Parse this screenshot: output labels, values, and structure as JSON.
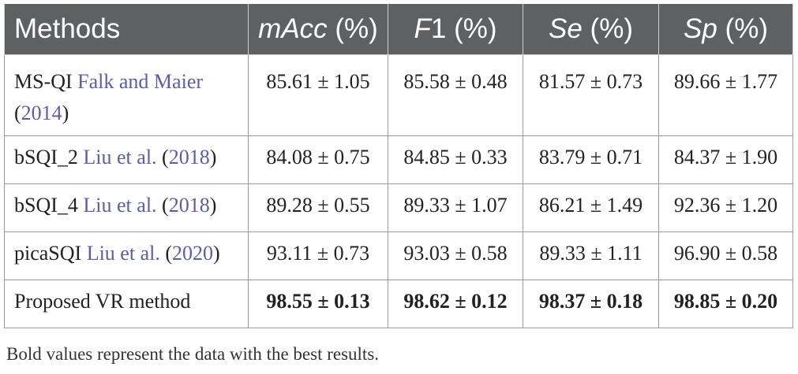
{
  "table": {
    "headers": {
      "methods": "Methods",
      "macc_it": "mAcc",
      "macc_unit": " (%)",
      "f1_it": "F",
      "f1_rest": "1 (%)",
      "se_it": "Se",
      "se_unit": " (%)",
      "sp_it": "Sp",
      "sp_unit": " (%)"
    },
    "rows": [
      {
        "method_name": "MS-QI ",
        "method_ref": "Falk and Maier",
        "method_year_open": "(",
        "method_year": "2014",
        "method_year_close": ")",
        "macc": "85.61 ± 1.05",
        "f1": "85.58 ± 0.48",
        "se": "81.57 ± 0.73",
        "sp": "89.66 ± 1.77"
      },
      {
        "method_name": "bSQI_2 ",
        "method_ref": "Liu et al.",
        "method_year_open": " (",
        "method_year": "2018",
        "method_year_close": ")",
        "macc": "84.08 ± 0.75",
        "f1": "84.85 ± 0.33",
        "se": "83.79 ± 0.71",
        "sp": "84.37 ± 1.90"
      },
      {
        "method_name": "bSQI_4 ",
        "method_ref": "Liu et al.",
        "method_year_open": " (",
        "method_year": "2018",
        "method_year_close": ")",
        "macc": "89.28 ± 0.55",
        "f1": "89.33 ± 1.07",
        "se": "86.21 ± 1.49",
        "sp": "92.36 ± 1.20"
      },
      {
        "method_name": "picaSQI ",
        "method_ref": "Liu et al.",
        "method_year_open": " (",
        "method_year": "2020",
        "method_year_close": ")",
        "macc": "93.11 ± 0.73",
        "f1": "93.03 ± 0.58",
        "se": "89.33 ± 1.11",
        "sp": "96.90 ± 0.58"
      },
      {
        "method_name": "Proposed VR method",
        "macc": "98.55 ± 0.13",
        "f1": "98.62 ± 0.12",
        "se": "98.37 ± 0.18",
        "sp": "98.85 ± 0.20"
      }
    ]
  },
  "footnote": "Bold values represent the data with the best results."
}
